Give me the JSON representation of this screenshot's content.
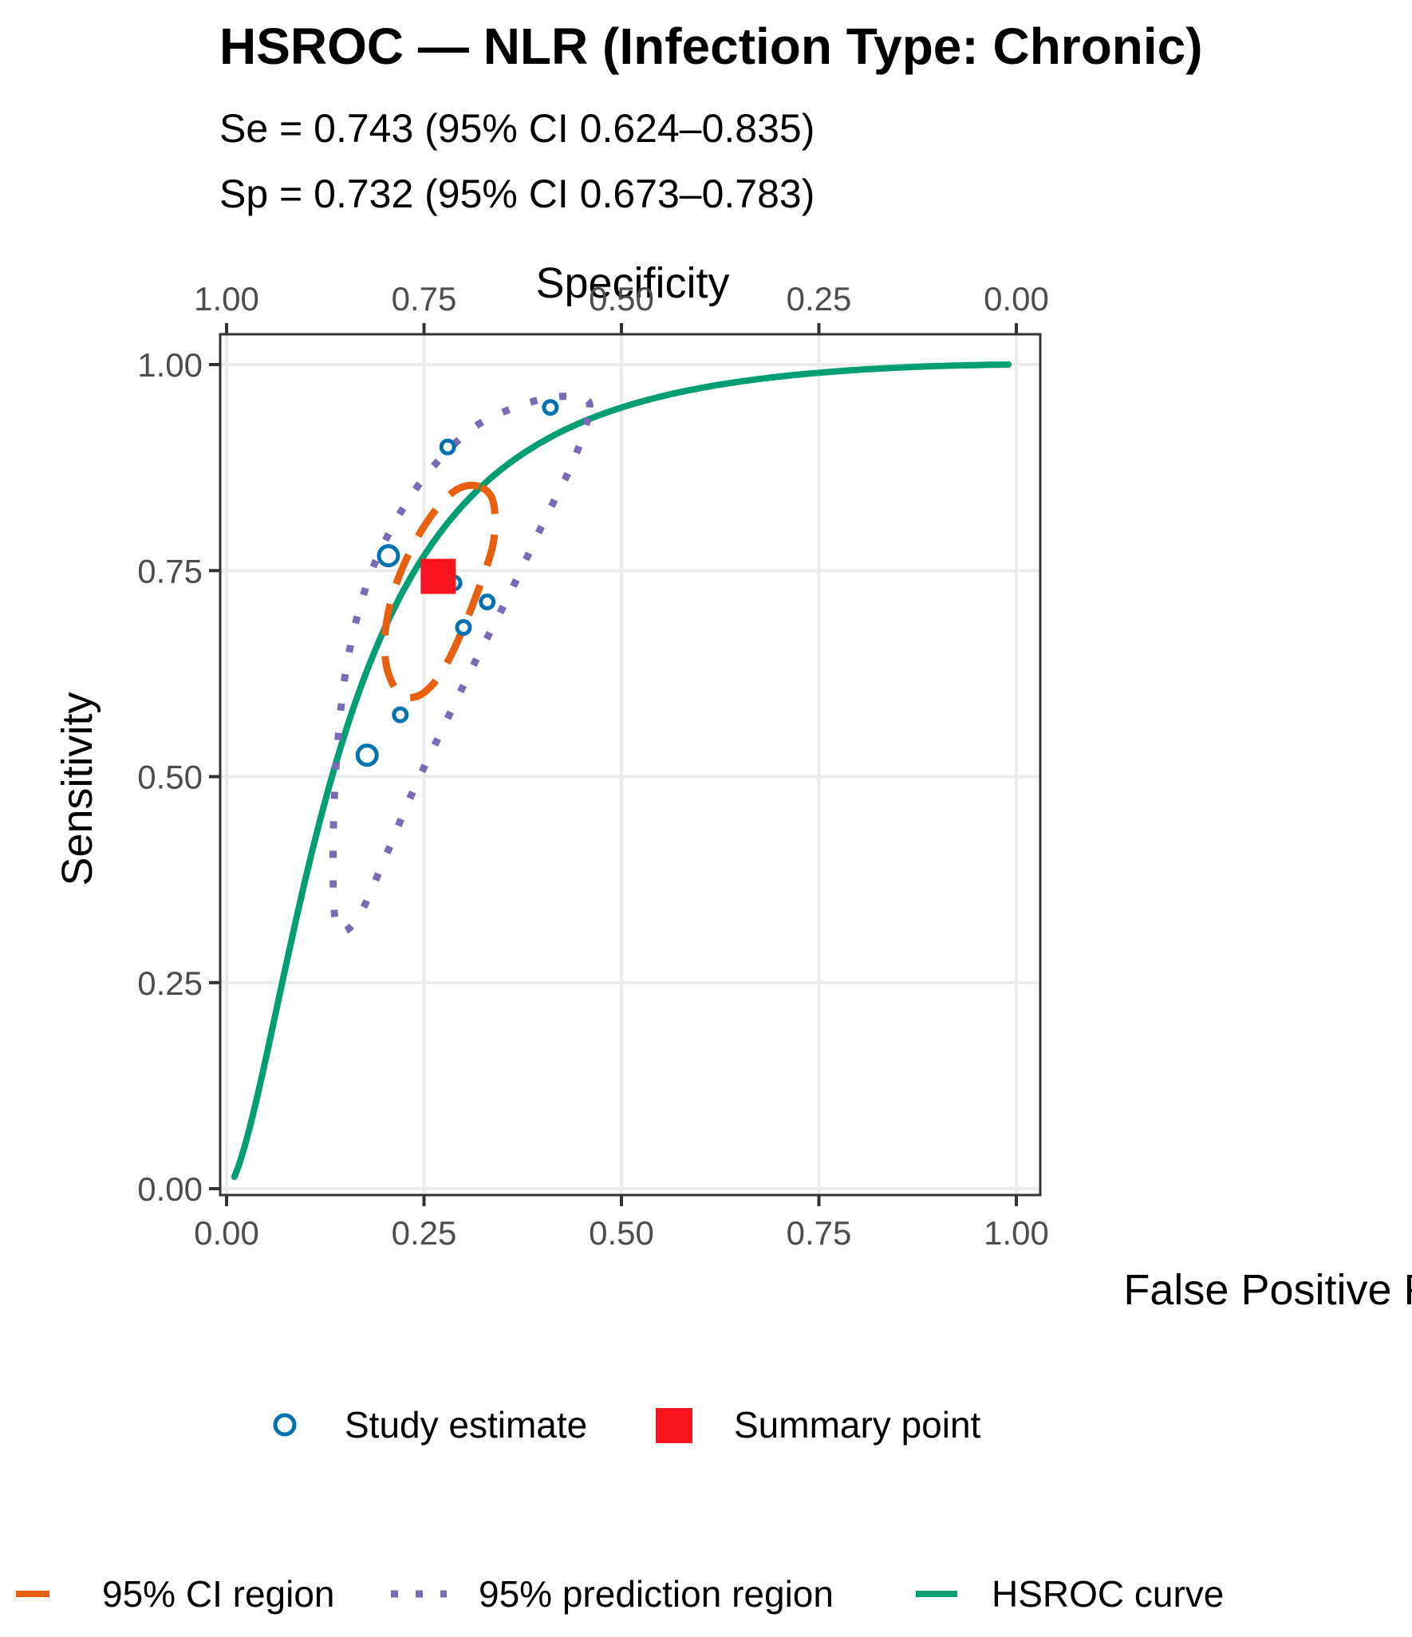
{
  "colors": {
    "study": "#0072B2",
    "summary": "#F8141C",
    "ci": "#E8600E",
    "prediction": "#7B6BB7",
    "curve": "#009E73",
    "grid": "#ebebeb",
    "tick_text": "#4d4d4d"
  },
  "chart_data": {
    "type": "scatter",
    "title": "HSROC — NLR (Infection Type: Chronic)",
    "subtitle_lines": [
      "Se = 0.743 (95% CI 0.624–0.835)",
      "Sp = 0.732 (95% CI 0.673–0.783)"
    ],
    "xlabel": "False Positive Rate",
    "ylabel": "Sensitivity",
    "x2label": "Specificity",
    "xlim": [
      0,
      1
    ],
    "ylim": [
      0,
      1
    ],
    "x_ticks": [
      "0.00",
      "0.25",
      "0.50",
      "0.75",
      "1.00"
    ],
    "y_ticks": [
      "0.00",
      "0.25",
      "0.50",
      "0.75",
      "1.00"
    ],
    "x2_ticks": [
      "1.00",
      "0.75",
      "0.50",
      "0.25",
      "0.00"
    ],
    "grid": true,
    "studies": [
      {
        "fpr": 0.205,
        "sens": 0.768,
        "size": "large"
      },
      {
        "fpr": 0.178,
        "sens": 0.526,
        "size": "large"
      },
      {
        "fpr": 0.28,
        "sens": 0.9,
        "size": "small"
      },
      {
        "fpr": 0.41,
        "sens": 0.948,
        "size": "small"
      },
      {
        "fpr": 0.288,
        "sens": 0.735,
        "size": "small"
      },
      {
        "fpr": 0.33,
        "sens": 0.712,
        "size": "small"
      },
      {
        "fpr": 0.3,
        "sens": 0.681,
        "size": "small"
      },
      {
        "fpr": 0.22,
        "sens": 0.575,
        "size": "small"
      }
    ],
    "summary_point": {
      "fpr": 0.268,
      "sens": 0.743
    },
    "hsroc_curve": {
      "fpr_range": [
        0.01,
        0.99
      ],
      "sens_range": [
        0.005,
        1.0
      ]
    },
    "ci_region": [
      [
        0.32,
        0.852
      ],
      [
        0.3,
        0.852
      ],
      [
        0.28,
        0.84
      ],
      [
        0.258,
        0.815
      ],
      [
        0.237,
        0.782
      ],
      [
        0.218,
        0.742
      ],
      [
        0.205,
        0.7
      ],
      [
        0.2,
        0.66
      ],
      [
        0.205,
        0.625
      ],
      [
        0.22,
        0.6
      ],
      [
        0.24,
        0.597
      ],
      [
        0.262,
        0.613
      ],
      [
        0.283,
        0.645
      ],
      [
        0.304,
        0.69
      ],
      [
        0.322,
        0.735
      ],
      [
        0.337,
        0.78
      ],
      [
        0.34,
        0.815
      ],
      [
        0.335,
        0.84
      ],
      [
        0.32,
        0.852
      ]
    ],
    "prediction_region": [
      [
        0.46,
        0.948
      ],
      [
        0.443,
        0.96
      ],
      [
        0.41,
        0.96
      ],
      [
        0.365,
        0.948
      ],
      [
        0.315,
        0.925
      ],
      [
        0.265,
        0.88
      ],
      [
        0.22,
        0.82
      ],
      [
        0.18,
        0.74
      ],
      [
        0.153,
        0.64
      ],
      [
        0.14,
        0.53
      ],
      [
        0.135,
        0.42
      ],
      [
        0.137,
        0.33
      ],
      [
        0.148,
        0.312
      ],
      [
        0.17,
        0.335
      ],
      [
        0.2,
        0.4
      ],
      [
        0.235,
        0.48
      ],
      [
        0.272,
        0.555
      ],
      [
        0.315,
        0.64
      ],
      [
        0.36,
        0.725
      ],
      [
        0.403,
        0.812
      ],
      [
        0.44,
        0.885
      ],
      [
        0.46,
        0.948
      ]
    ],
    "legend": {
      "study": "Study estimate",
      "summary": "Summary point",
      "ci": "95% CI region",
      "prediction": "95% prediction region",
      "curve": "HSROC curve"
    }
  }
}
